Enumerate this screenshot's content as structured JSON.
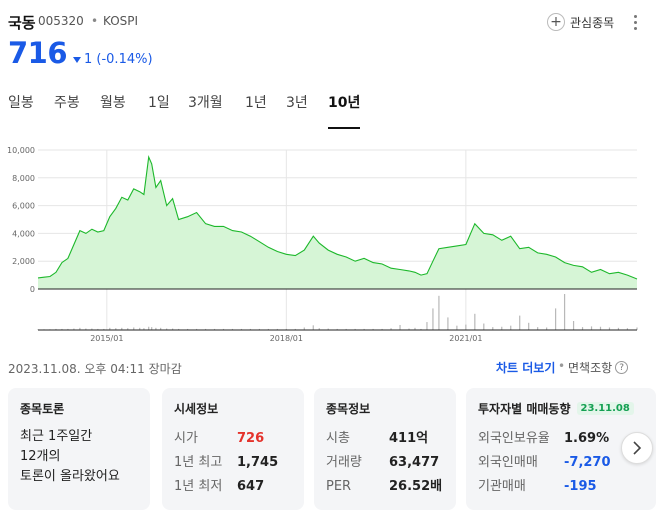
{
  "header": {
    "name": "국동",
    "code": "005320",
    "separator": "•",
    "market": "KOSPI",
    "watch_label": "관심종목"
  },
  "quote": {
    "price": "716",
    "change": "1 (-0.14%)",
    "direction": "down",
    "color": "#1a5ae6"
  },
  "tabs": [
    {
      "label": "일봉",
      "active": false
    },
    {
      "label": "주봉",
      "active": false
    },
    {
      "label": "월봉",
      "active": false
    },
    {
      "label": "1일",
      "active": false
    },
    {
      "label": "3개월",
      "active": false
    },
    {
      "label": "1년",
      "active": false
    },
    {
      "label": "3년",
      "active": false
    },
    {
      "label": "10년",
      "active": true
    }
  ],
  "chart_data": {
    "type": "area",
    "title": "",
    "xlabel": "",
    "ylabel": "",
    "ylim": [
      0,
      10000
    ],
    "y_ticks": [
      "10,000",
      "8,000",
      "6,000",
      "4,000",
      "2,000",
      "0"
    ],
    "x_ticks": [
      "2015/01",
      "2018/01",
      "2021/01"
    ],
    "x_tick_positions": [
      2015.0,
      2018.0,
      2021.0
    ],
    "xlim": [
      2013.85,
      2023.86
    ],
    "line_color": "#1db82b",
    "fill_color": "#d6f5d6",
    "x": [
      2013.85,
      2013.95,
      2014.05,
      2014.15,
      2014.25,
      2014.35,
      2014.45,
      2014.55,
      2014.65,
      2014.75,
      2014.85,
      2014.95,
      2015.05,
      2015.15,
      2015.25,
      2015.35,
      2015.45,
      2015.55,
      2015.62,
      2015.7,
      2015.75,
      2015.82,
      2015.9,
      2016.0,
      2016.1,
      2016.2,
      2016.35,
      2016.5,
      2016.65,
      2016.8,
      2016.95,
      2017.1,
      2017.25,
      2017.4,
      2017.55,
      2017.7,
      2017.85,
      2018.0,
      2018.15,
      2018.3,
      2018.45,
      2018.55,
      2018.7,
      2018.85,
      2019.0,
      2019.15,
      2019.3,
      2019.45,
      2019.6,
      2019.75,
      2019.9,
      2020.05,
      2020.15,
      2020.25,
      2020.35,
      2020.45,
      2020.55,
      2020.7,
      2020.85,
      2021.0,
      2021.15,
      2021.3,
      2021.45,
      2021.6,
      2021.75,
      2021.9,
      2022.05,
      2022.2,
      2022.35,
      2022.5,
      2022.65,
      2022.8,
      2022.95,
      2023.1,
      2023.25,
      2023.4,
      2023.55,
      2023.7,
      2023.86
    ],
    "values": [
      800,
      850,
      900,
      1200,
      1900,
      2200,
      3200,
      4200,
      4000,
      4300,
      4100,
      4200,
      5200,
      5800,
      6600,
      6400,
      7200,
      7000,
      6800,
      9500,
      9000,
      7300,
      7800,
      6000,
      6500,
      5000,
      5200,
      5500,
      4700,
      4500,
      4500,
      4200,
      4100,
      3800,
      3400,
      3000,
      2700,
      2500,
      2400,
      2800,
      3800,
      3300,
      2800,
      2500,
      2300,
      2000,
      2200,
      1900,
      1800,
      1500,
      1400,
      1300,
      1200,
      1000,
      1100,
      2000,
      2900,
      3000,
      3100,
      3200,
      4700,
      4000,
      3900,
      3500,
      3800,
      2900,
      3000,
      2600,
      2500,
      2300,
      1900,
      1700,
      1600,
      1200,
      1400,
      1100,
      1200,
      1000,
      716
    ],
    "volume": [
      2,
      2,
      2,
      3,
      3,
      3,
      4,
      6,
      4,
      4,
      3,
      3,
      6,
      5,
      6,
      5,
      7,
      6,
      5,
      9,
      8,
      6,
      6,
      4,
      4,
      3,
      3,
      3,
      3,
      3,
      3,
      3,
      3,
      3,
      3,
      3,
      3,
      3,
      3,
      7,
      13,
      5,
      4,
      3,
      3,
      3,
      3,
      3,
      3,
      5,
      14,
      4,
      6,
      3,
      22,
      60,
      95,
      35,
      12,
      15,
      45,
      18,
      8,
      9,
      12,
      40,
      20,
      8,
      7,
      60,
      100,
      25,
      8,
      10,
      9,
      7,
      6,
      5,
      7
    ]
  },
  "footer": {
    "timestamp": "2023.11.08. 오후 04:11 장마감",
    "chart_more": "차트 더보기",
    "dot": "•",
    "disclaimer": "면책조항"
  },
  "cards": {
    "discussion": {
      "title": "종목토론",
      "lines": [
        "최근 1주일간",
        "12개의",
        "토론이 올라왔어요"
      ]
    },
    "market_info": {
      "title": "시세정보",
      "rows": [
        {
          "k": "시가",
          "v": "726",
          "tone": "red"
        },
        {
          "k": "1년 최고",
          "v": "1,745",
          "tone": ""
        },
        {
          "k": "1년 최저",
          "v": "647",
          "tone": ""
        }
      ]
    },
    "stock_info": {
      "title": "종목정보",
      "rows": [
        {
          "k": "시총",
          "v": "411억",
          "tone": ""
        },
        {
          "k": "거래량",
          "v": "63,477",
          "tone": ""
        },
        {
          "k": "PER",
          "v": "26.52배",
          "tone": ""
        }
      ]
    },
    "investor": {
      "title": "투자자별 매매동향",
      "date": "23.11.08",
      "rows": [
        {
          "k": "외국인보유율",
          "v": "1.69%",
          "tone": ""
        },
        {
          "k": "외국인매매",
          "v": "-7,270",
          "tone": "blue"
        },
        {
          "k": "기관매매",
          "v": "-195",
          "tone": "blue"
        }
      ]
    }
  }
}
